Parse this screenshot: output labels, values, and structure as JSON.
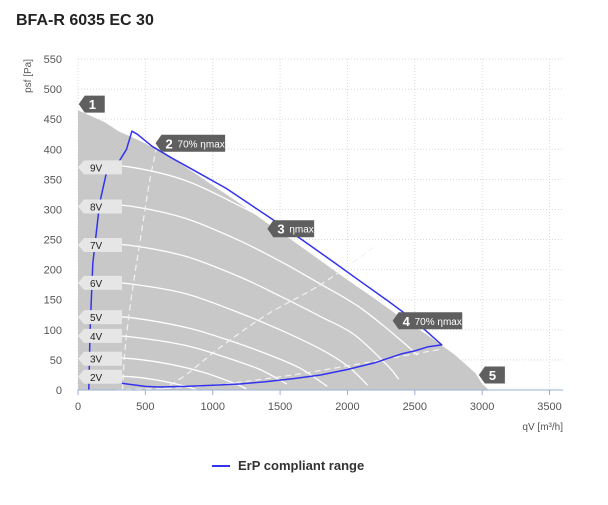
{
  "title": "BFA-R 6035 EC 30",
  "chart_data": {
    "type": "line",
    "xlabel": "qV [m³/h]",
    "ylabel": "psf [Pa]",
    "xlim": [
      0,
      3600
    ],
    "ylim": [
      0,
      550
    ],
    "x_ticks": [
      0,
      500,
      1000,
      1500,
      2000,
      2500,
      3000,
      3500
    ],
    "y_ticks": [
      0,
      50,
      100,
      150,
      200,
      250,
      300,
      350,
      400,
      450,
      500,
      550
    ],
    "grid": true,
    "legend": "bottom-center",
    "colors": {
      "envelope": "#c8c8c8",
      "erp": "#3333ee",
      "curves": "#ffffff",
      "markers": "#5f5f5f",
      "vlabel_bg": "#e6e6e6"
    },
    "envelope": [
      [
        0,
        465
      ],
      [
        100,
        455
      ],
      [
        200,
        445
      ],
      [
        300,
        430
      ],
      [
        450,
        415
      ],
      [
        600,
        398
      ],
      [
        800,
        370
      ],
      [
        1000,
        340
      ],
      [
        1200,
        310
      ],
      [
        1400,
        278
      ],
      [
        1600,
        247
      ],
      [
        1800,
        215
      ],
      [
        2000,
        183
      ],
      [
        2200,
        152
      ],
      [
        2400,
        120
      ],
      [
        2600,
        90
      ],
      [
        2800,
        58
      ],
      [
        2950,
        28
      ],
      [
        3000,
        10
      ],
      [
        3050,
        0
      ],
      [
        0,
        0
      ]
    ],
    "speed_labels": [
      {
        "label": "9V",
        "y": 370
      },
      {
        "label": "8V",
        "y": 305
      },
      {
        "label": "7V",
        "y": 241
      },
      {
        "label": "6V",
        "y": 178
      },
      {
        "label": "5V",
        "y": 121
      },
      {
        "label": "4V",
        "y": 90
      },
      {
        "label": "3V",
        "y": 52
      },
      {
        "label": "2V",
        "y": 22
      }
    ],
    "speed_curves": [
      {
        "label": "9V",
        "points": [
          [
            50,
            376
          ],
          [
            400,
            370
          ],
          [
            800,
            348
          ],
          [
            1200,
            306
          ],
          [
            1500,
            270
          ],
          [
            1800,
            228
          ],
          [
            2100,
            184
          ],
          [
            2400,
            131
          ],
          [
            2600,
            95
          ]
        ]
      },
      {
        "label": "8V",
        "points": [
          [
            50,
            310
          ],
          [
            400,
            305
          ],
          [
            800,
            285
          ],
          [
            1200,
            248
          ],
          [
            1500,
            214
          ],
          [
            1800,
            176
          ],
          [
            2100,
            136
          ],
          [
            2400,
            82
          ],
          [
            2520,
            58
          ]
        ]
      },
      {
        "label": "7V",
        "points": [
          [
            50,
            245
          ],
          [
            400,
            240
          ],
          [
            800,
            222
          ],
          [
            1200,
            188
          ],
          [
            1500,
            156
          ],
          [
            1800,
            122
          ],
          [
            2050,
            92
          ],
          [
            2300,
            40
          ],
          [
            2380,
            18
          ]
        ]
      },
      {
        "label": "6V",
        "points": [
          [
            50,
            182
          ],
          [
            400,
            176
          ],
          [
            800,
            160
          ],
          [
            1200,
            128
          ],
          [
            1500,
            100
          ],
          [
            1800,
            68
          ],
          [
            2000,
            40
          ],
          [
            2150,
            8
          ]
        ]
      },
      {
        "label": "5V",
        "points": [
          [
            50,
            125
          ],
          [
            400,
            120
          ],
          [
            800,
            104
          ],
          [
            1100,
            84
          ],
          [
            1400,
            60
          ],
          [
            1650,
            36
          ],
          [
            1850,
            6
          ]
        ]
      },
      {
        "label": "4V",
        "points": [
          [
            50,
            93
          ],
          [
            400,
            88
          ],
          [
            800,
            74
          ],
          [
            1100,
            54
          ],
          [
            1350,
            34
          ],
          [
            1550,
            10
          ]
        ]
      },
      {
        "label": "3V",
        "points": [
          [
            50,
            56
          ],
          [
            400,
            52
          ],
          [
            700,
            42
          ],
          [
            950,
            28
          ],
          [
            1150,
            12
          ],
          [
            1250,
            2
          ]
        ]
      },
      {
        "label": "2V",
        "points": [
          [
            50,
            25
          ],
          [
            400,
            22
          ],
          [
            600,
            16
          ],
          [
            800,
            6
          ],
          [
            880,
            0
          ]
        ]
      }
    ],
    "efficiency_lines": [
      {
        "points": [
          [
            330,
            0
          ],
          [
            350,
            70
          ],
          [
            400,
            160
          ],
          [
            470,
            260
          ],
          [
            530,
            345
          ],
          [
            590,
            410
          ]
        ]
      },
      {
        "points": [
          [
            620,
            0
          ],
          [
            800,
            25
          ],
          [
            1050,
            70
          ],
          [
            1400,
            125
          ],
          [
            1800,
            175
          ],
          [
            2200,
            238
          ]
        ]
      },
      {
        "points": [
          [
            280,
            0
          ],
          [
            900,
            6
          ],
          [
            1500,
            22
          ],
          [
            2000,
            40
          ],
          [
            2500,
            60
          ],
          [
            2700,
            68
          ]
        ]
      }
    ],
    "erp_range": [
      [
        80,
        0
      ],
      [
        90,
        100
      ],
      [
        110,
        210
      ],
      [
        160,
        310
      ],
      [
        210,
        360
      ],
      [
        300,
        378
      ],
      [
        360,
        400
      ],
      [
        400,
        430
      ],
      [
        440,
        425
      ],
      [
        550,
        405
      ],
      [
        700,
        385
      ],
      [
        900,
        360
      ],
      [
        1100,
        335
      ],
      [
        1300,
        305
      ],
      [
        1500,
        275
      ],
      [
        1700,
        244
      ],
      [
        1900,
        212
      ],
      [
        2100,
        180
      ],
      [
        2300,
        148
      ],
      [
        2500,
        115
      ],
      [
        2700,
        75
      ],
      [
        2600,
        72
      ],
      [
        2500,
        65
      ],
      [
        2400,
        60
      ],
      [
        2200,
        45
      ],
      [
        2000,
        34
      ],
      [
        1800,
        25
      ],
      [
        1600,
        19
      ],
      [
        1400,
        14
      ],
      [
        1200,
        10
      ],
      [
        1000,
        8
      ],
      [
        800,
        6
      ],
      [
        600,
        5
      ],
      [
        500,
        6
      ],
      [
        300,
        12
      ],
      [
        300,
        20
      ]
    ],
    "markers": [
      {
        "num": "1",
        "text": "",
        "x": 50,
        "y": 475
      },
      {
        "num": "2",
        "text": "70% ηmax",
        "x": 620,
        "y": 410
      },
      {
        "num": "3",
        "text": "ηmax",
        "x": 1450,
        "y": 268
      },
      {
        "num": "4",
        "text": "70% ηmax",
        "x": 2380,
        "y": 115
      },
      {
        "num": "5",
        "text": "",
        "x": 3020,
        "y": 25
      }
    ]
  },
  "legend": {
    "label": "ErP compliant range"
  }
}
